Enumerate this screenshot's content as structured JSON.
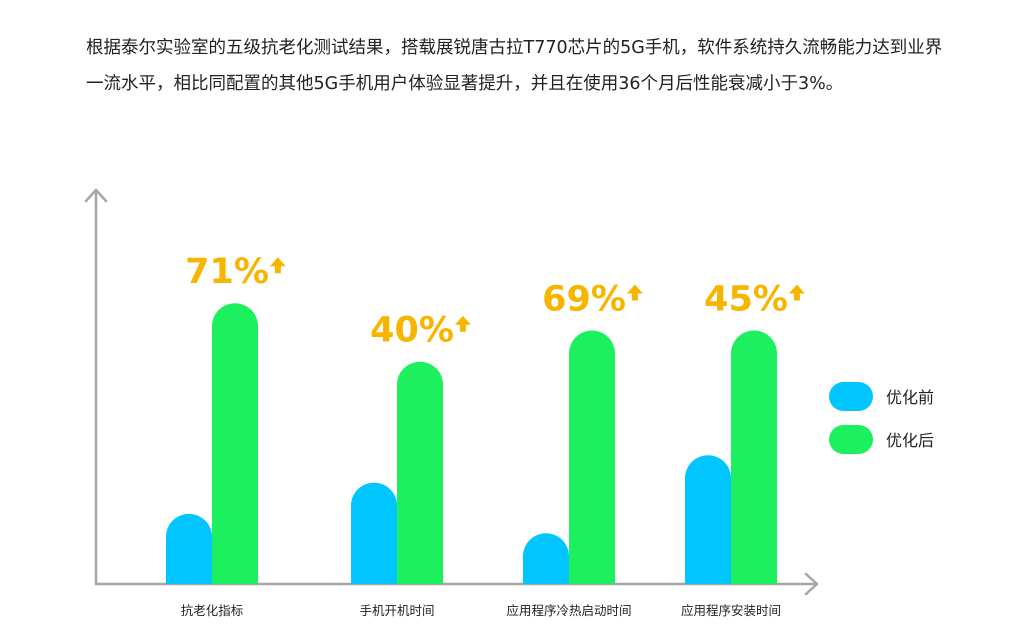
{
  "intro_text": "根据泰尔实验室的五级抗老化测试结果，搭载展锐唐古拉T770芯片的5G手机，软件系统持久流畅能力达到业界一流水平，相比同配置的其他5G手机用户体验显著提升，并且在使用36个月后性能衰减小于3%。",
  "colors": {
    "before": "#00c5ff",
    "after": "#1df05e",
    "highlight": "#f7b500",
    "axis": "#a6a6a6"
  },
  "chart_data": {
    "type": "bar",
    "categories": [
      "抗老化指标",
      "手机开机时间",
      "应用程序冷热启动时间",
      "应用程序安装时间"
    ],
    "series": [
      {
        "name": "优化前",
        "values": [
          18,
          26,
          13,
          33
        ]
      },
      {
        "name": "优化后",
        "values": [
          72,
          57,
          65,
          65
        ]
      }
    ],
    "annotations": [
      "71%",
      "40%",
      "69%",
      "45%"
    ],
    "annotation_icon": "arrow-up-icon",
    "ylim": [
      0,
      100
    ],
    "grid": false,
    "legend": "right"
  }
}
